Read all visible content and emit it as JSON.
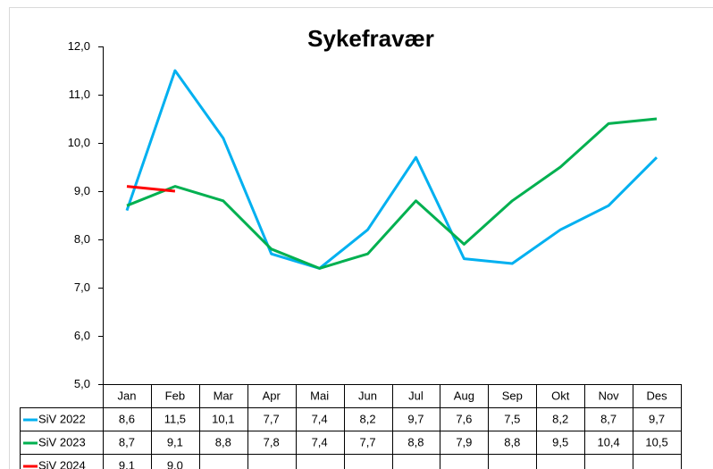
{
  "chart_data": {
    "type": "line",
    "title": "Sykefravær",
    "categories": [
      "Jan",
      "Feb",
      "Mar",
      "Apr",
      "Mai",
      "Jun",
      "Jul",
      "Aug",
      "Sep",
      "Okt",
      "Nov",
      "Des"
    ],
    "series": [
      {
        "name": "SiV 2022",
        "color": "#00b0f0",
        "values": [
          8.6,
          11.5,
          10.1,
          7.7,
          7.4,
          8.2,
          9.7,
          7.6,
          7.5,
          8.2,
          8.7,
          9.7
        ],
        "value_labels": [
          "8,6",
          "11,5",
          "10,1",
          "7,7",
          "7,4",
          "8,2",
          "9,7",
          "7,6",
          "7,5",
          "8,2",
          "8,7",
          "9,7"
        ]
      },
      {
        "name": "SiV 2023",
        "color": "#00b050",
        "values": [
          8.7,
          9.1,
          8.8,
          7.8,
          7.4,
          7.7,
          8.8,
          7.9,
          8.8,
          9.5,
          10.4,
          10.5
        ],
        "value_labels": [
          "8,7",
          "9,1",
          "8,8",
          "7,8",
          "7,4",
          "7,7",
          "8,8",
          "7,9",
          "8,8",
          "9,5",
          "10,4",
          "10,5"
        ]
      },
      {
        "name": "SiV 2024",
        "color": "#ff0000",
        "values": [
          9.1,
          9.0,
          null,
          null,
          null,
          null,
          null,
          null,
          null,
          null,
          null,
          null
        ],
        "value_labels": [
          "9,1",
          "9,0",
          null,
          null,
          null,
          null,
          null,
          null,
          null,
          null,
          null,
          null
        ]
      }
    ],
    "ylim": [
      5,
      12
    ],
    "yticks": [
      {
        "value": 5,
        "label": "5,0"
      },
      {
        "value": 6,
        "label": "6,0"
      },
      {
        "value": 7,
        "label": "7,0"
      },
      {
        "value": 8,
        "label": "8,0"
      },
      {
        "value": 9,
        "label": "9,0"
      },
      {
        "value": 10,
        "label": "10,0"
      },
      {
        "value": 11,
        "label": "11,0"
      },
      {
        "value": 12,
        "label": "12,0"
      }
    ],
    "grid": false
  }
}
